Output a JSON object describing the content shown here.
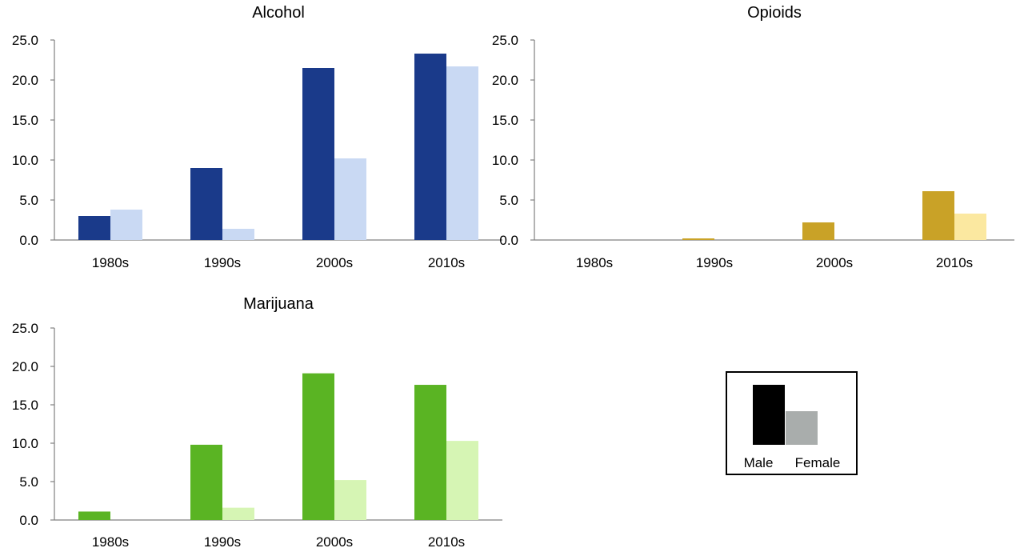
{
  "legend": {
    "entries": [
      {
        "label": "Male",
        "color": "#000000"
      },
      {
        "label": "Female",
        "color": "#a9adac"
      }
    ]
  },
  "chart_data": [
    {
      "type": "bar",
      "title": "Alcohol",
      "categories": [
        "1980s",
        "1990s",
        "2000s",
        "2010s"
      ],
      "ylim": [
        0,
        25
      ],
      "yticks": [
        "0.0",
        "5.0",
        "10.0",
        "15.0",
        "20.0",
        "25.0"
      ],
      "series": [
        {
          "name": "Male",
          "color": "#1a3a8a",
          "values": [
            3.0,
            9.0,
            21.5,
            23.3
          ]
        },
        {
          "name": "Female",
          "color": "#c9d9f3",
          "values": [
            3.8,
            1.4,
            10.2,
            21.7
          ]
        }
      ]
    },
    {
      "type": "bar",
      "title": "Opioids",
      "categories": [
        "1980s",
        "1990s",
        "2000s",
        "2010s"
      ],
      "ylim": [
        0,
        25
      ],
      "yticks": [
        "0.0",
        "5.0",
        "10.0",
        "15.0",
        "20.0",
        "25.0"
      ],
      "series": [
        {
          "name": "Male",
          "color": "#c9a227",
          "values": [
            0.0,
            0.2,
            2.2,
            6.1
          ]
        },
        {
          "name": "Female",
          "color": "#fbe8a0",
          "values": [
            0.0,
            0.0,
            0.0,
            3.3
          ]
        }
      ]
    },
    {
      "type": "bar",
      "title": "Marijuana",
      "categories": [
        "1980s",
        "1990s",
        "2000s",
        "2010s"
      ],
      "ylim": [
        0,
        25
      ],
      "yticks": [
        "0.0",
        "5.0",
        "10.0",
        "15.0",
        "20.0",
        "25.0"
      ],
      "series": [
        {
          "name": "Male",
          "color": "#5ab423",
          "values": [
            1.1,
            9.8,
            19.1,
            17.6
          ]
        },
        {
          "name": "Female",
          "color": "#d6f5b4",
          "values": [
            0.0,
            1.6,
            5.2,
            10.3
          ]
        }
      ]
    }
  ]
}
